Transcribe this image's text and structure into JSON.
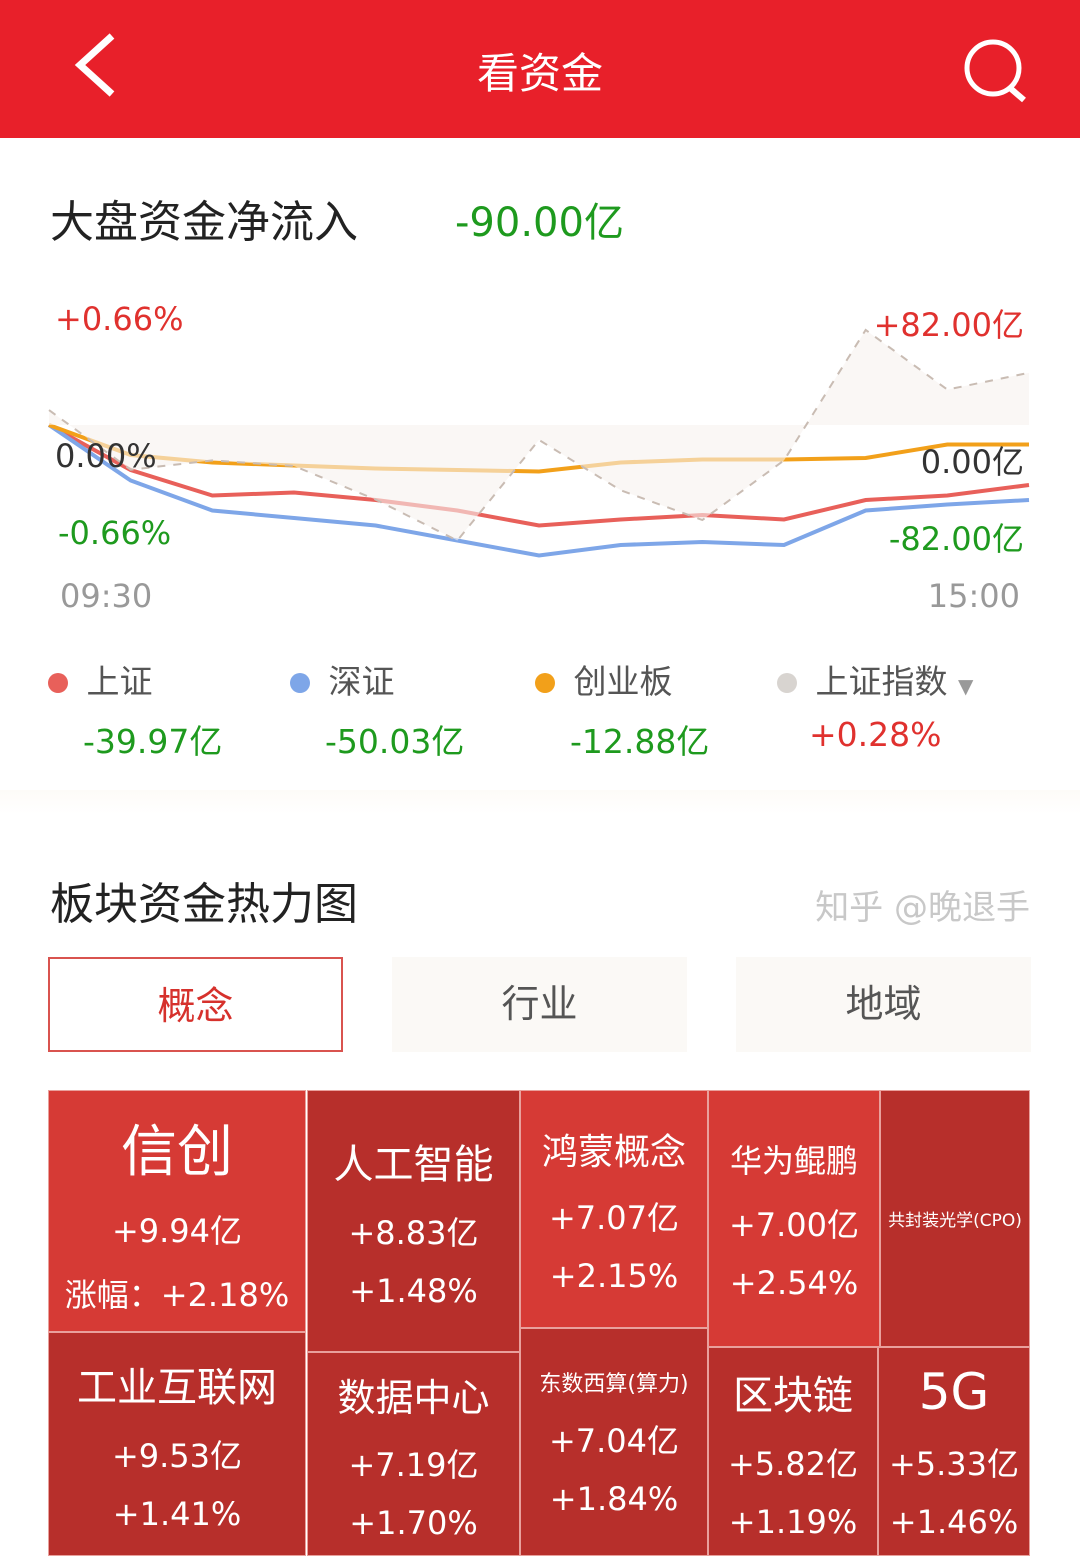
{
  "header": {
    "title": "看资金",
    "back_icon": "chevron-left-icon",
    "search_icon": "search-icon"
  },
  "market": {
    "label": "大盘资金净流入",
    "value": "-90.00亿",
    "axis": {
      "left_top": "+0.66%",
      "left_mid": "0.00%",
      "left_bottom": "-0.66%",
      "right_top": "+82.00亿",
      "right_mid": "0.00亿",
      "right_bottom": "-82.00亿",
      "start_time": "09:30",
      "end_time": "15:00"
    },
    "legend": [
      {
        "name": "上证",
        "value": "-39.97亿",
        "color": "#e8605a"
      },
      {
        "name": "深证",
        "value": "-50.03亿",
        "color": "#7ea6e8"
      },
      {
        "name": "创业板",
        "value": "-12.88亿",
        "color": "#f2a01a"
      },
      {
        "name": "上证指数",
        "value": "+0.28%",
        "color": "#d8d4d0"
      }
    ]
  },
  "chart_data": {
    "type": "line",
    "x_range": [
      "09:30",
      "15:00"
    ],
    "y_left_range": [
      -0.66,
      0.66
    ],
    "y_right_range": [
      -82,
      82
    ],
    "grid": false,
    "series": [
      {
        "name": "上证",
        "axis": "right",
        "color": "#e8605a",
        "values": [
          0,
          -30,
          -47,
          -45,
          -50,
          -57,
          -67,
          -63,
          -60,
          -63,
          -50,
          -47,
          -40
        ]
      },
      {
        "name": "深证",
        "axis": "right",
        "color": "#7ea6e8",
        "values": [
          0,
          -37,
          -57,
          -62,
          -67,
          -77,
          -87,
          -80,
          -78,
          -80,
          -57,
          -53,
          -50
        ]
      },
      {
        "name": "创业板",
        "axis": "right",
        "color": "#f2a01a",
        "values": [
          0,
          -20,
          -25,
          -27,
          -29,
          -30,
          -31,
          -25,
          -23,
          -23,
          -22,
          -13,
          -13
        ]
      },
      {
        "name": "上证指数",
        "axis": "left",
        "color": "#c9bcb3",
        "style": "dashed",
        "values": [
          0.08,
          -0.24,
          -0.19,
          -0.22,
          -0.4,
          -0.62,
          -0.08,
          -0.35,
          -0.51,
          -0.19,
          0.51,
          0.19,
          0.28
        ]
      }
    ]
  },
  "heatmap": {
    "title": "板块资金热力图",
    "tabs": [
      "概念",
      "行业",
      "地域"
    ],
    "active_tab": "概念",
    "cells": [
      {
        "name": "信创",
        "flow": "+9.94亿",
        "change": "涨幅：+2.18%"
      },
      {
        "name": "人工智能",
        "flow": "+8.83亿",
        "change": "+1.48%"
      },
      {
        "name": "鸿蒙概念",
        "flow": "+7.07亿",
        "change": "+2.15%"
      },
      {
        "name": "华为鲲鹏",
        "flow": "+7.00亿",
        "change": "+2.54%"
      },
      {
        "name": "共封装光学(CPO)",
        "flow": "",
        "change": ""
      },
      {
        "name": "工业互联网",
        "flow": "+9.53亿",
        "change": "+1.41%"
      },
      {
        "name": "数据中心",
        "flow": "+7.19亿",
        "change": "+1.70%"
      },
      {
        "name": "东数西算(算力)",
        "flow": "+7.04亿",
        "change": "+1.84%"
      },
      {
        "name": "区块链",
        "flow": "+5.82亿",
        "change": "+1.19%"
      },
      {
        "name": "5G",
        "flow": "+5.33亿",
        "change": "+1.46%"
      }
    ]
  },
  "watermark": "知乎 @晚退手"
}
